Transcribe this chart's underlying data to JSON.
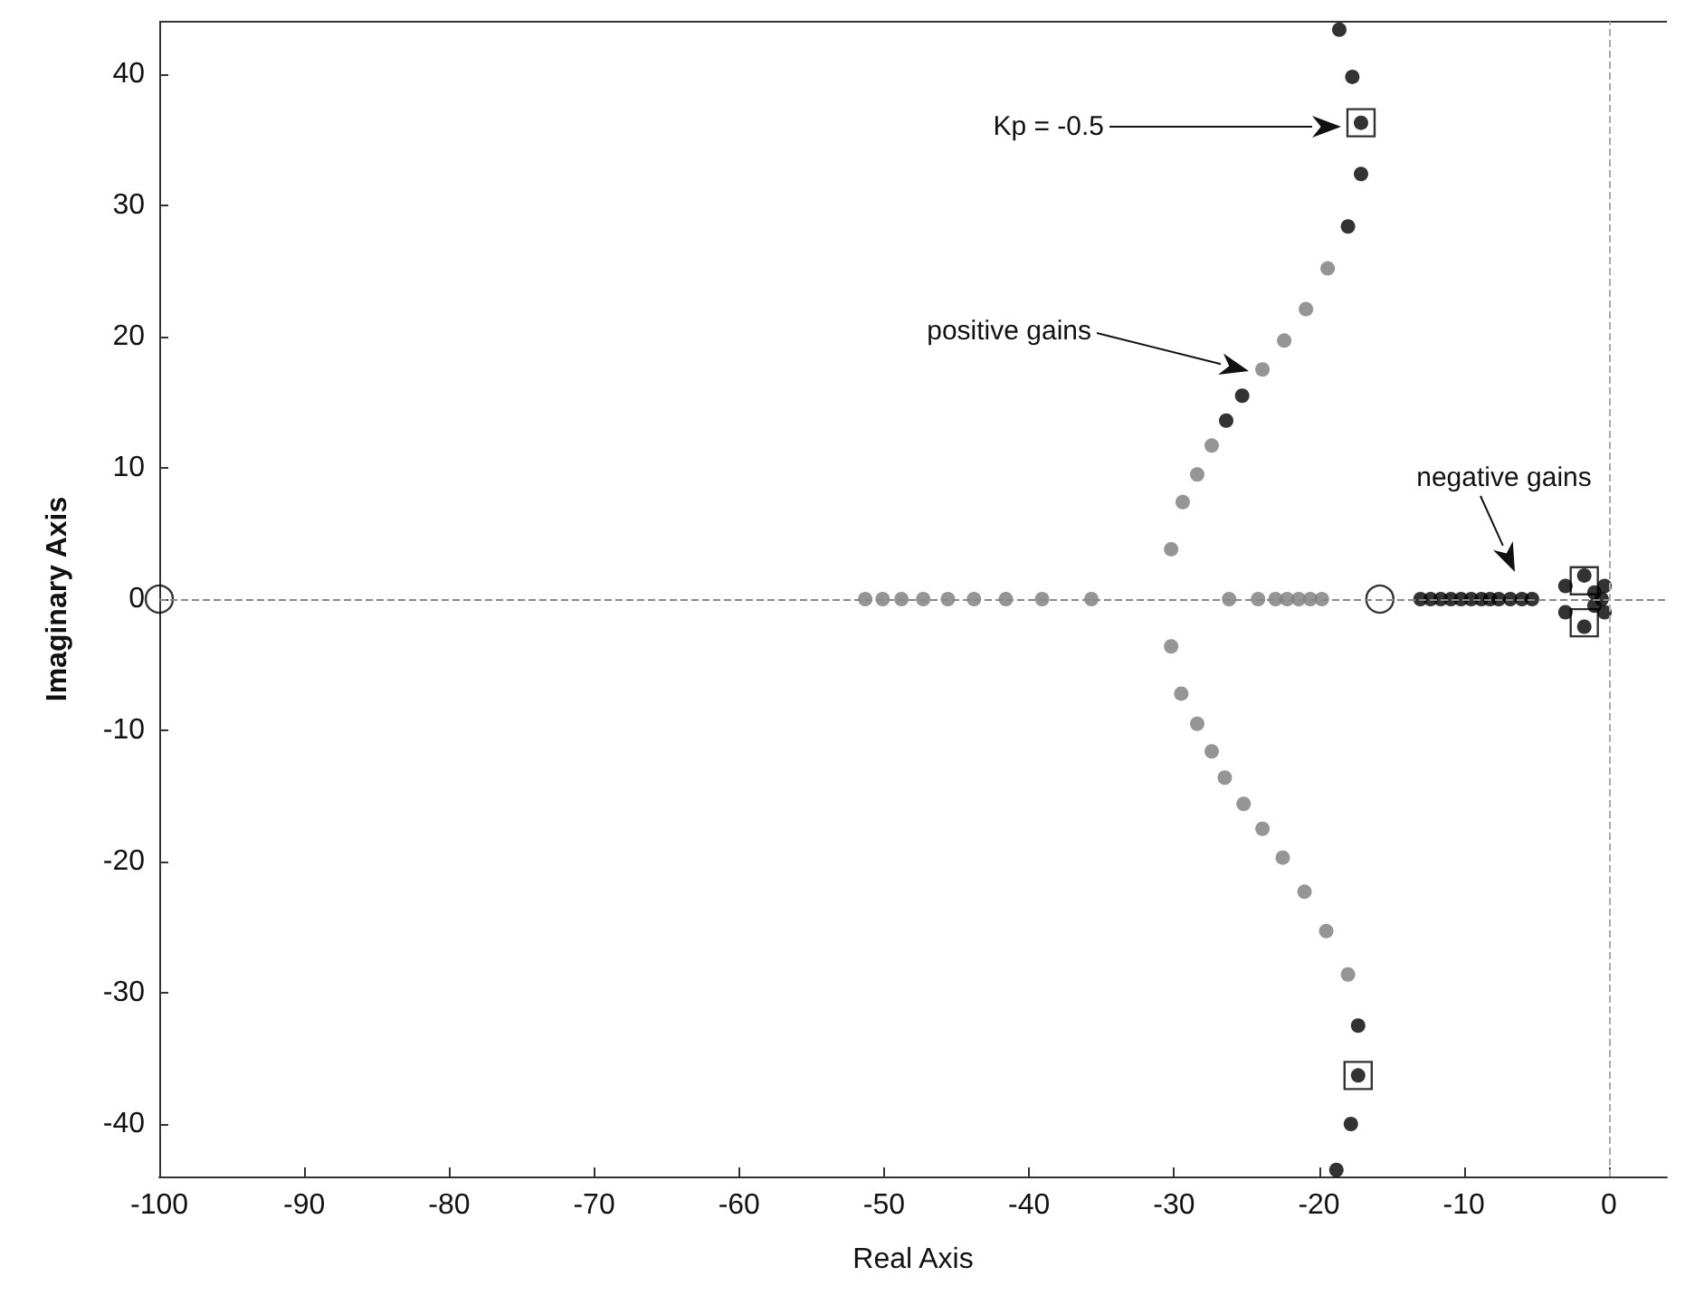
{
  "chart_data": {
    "type": "scatter",
    "xlabel": "Real Axis",
    "ylabel": "Imaginary Axis",
    "xlim": [
      -100,
      4
    ],
    "ylim": [
      -44,
      44
    ],
    "xticks": [
      -100,
      -90,
      -80,
      -70,
      -60,
      -50,
      -40,
      -30,
      -20,
      -10,
      0
    ],
    "yticks": [
      -40,
      -30,
      -20,
      -10,
      0,
      10,
      20,
      30,
      40
    ],
    "marker": "circle",
    "series": [
      {
        "color": "#7a7a7a",
        "x": [
          -30.2,
          -29.4,
          -28.4,
          -27.4,
          -23.9,
          -22.4,
          -20.9,
          -19.4,
          -30.2,
          -29.5,
          -28.4,
          -27.4,
          -26.5,
          -25.2,
          -23.9,
          -22.5,
          -21.0,
          -19.5,
          -18.0,
          -51.3,
          -50.1,
          -48.8,
          -47.3,
          -45.6,
          -43.8,
          -41.6,
          -39.1,
          -35.7,
          -26.2,
          -24.2,
          -23.0,
          -22.2,
          -21.4,
          -20.6,
          -19.8
        ],
        "values": [
          3.8,
          7.4,
          9.5,
          11.7,
          17.5,
          19.7,
          22.1,
          25.2,
          -3.6,
          -7.2,
          -9.5,
          -11.6,
          -13.6,
          -15.6,
          -17.5,
          -19.7,
          -22.3,
          -25.3,
          -28.6,
          0,
          0,
          0,
          0,
          0,
          0,
          0,
          0,
          0,
          0,
          0,
          0,
          0,
          0,
          0,
          0
        ]
      },
      {
        "color": "#000000",
        "x": [
          -18.6,
          -17.7,
          -17.1,
          -17.1,
          -18.0,
          -25.3,
          -26.4,
          -17.3,
          -17.3,
          -17.8,
          -18.8,
          -13.0,
          -12.3,
          -11.6,
          -10.9,
          -10.2,
          -9.5,
          -8.8,
          -8.2,
          -7.6,
          -6.8,
          -6.0,
          -5.3,
          -3.0,
          -3.0,
          -1.7,
          -1.7,
          -1.0,
          -0.5,
          -1.0,
          -0.3,
          -0.3
        ],
        "values": [
          43.4,
          39.8,
          36.3,
          32.4,
          28.4,
          15.5,
          13.6,
          -32.5,
          -36.3,
          -40.0,
          -43.5,
          0,
          0,
          0,
          0,
          0,
          0,
          0,
          0,
          0,
          0,
          0,
          0,
          1.0,
          -1.0,
          1.8,
          -2.1,
          0.5,
          0,
          -0.5,
          1.0,
          -1.0
        ]
      },
      {
        "color": "#000000",
        "marker": "circle",
        "x": [
          -100,
          -15.8
        ],
        "values": [
          0,
          0
        ]
      },
      {
        "color": "#000000",
        "marker": "square",
        "x": [
          -17.1,
          -17.3,
          -1.7,
          -1.7
        ],
        "values": [
          36.3,
          -36.3,
          1.4,
          -1.8
        ]
      }
    ],
    "ref_lines": [
      {
        "axis": "y",
        "value": 0,
        "color": "#888888",
        "line_style": "dashed"
      },
      {
        "axis": "x",
        "value": 0,
        "color": "#aaaaaa",
        "line_style": "dashed"
      }
    ],
    "annotations": [
      "Kp = -0.5",
      "positive gains",
      "negative gains"
    ]
  }
}
